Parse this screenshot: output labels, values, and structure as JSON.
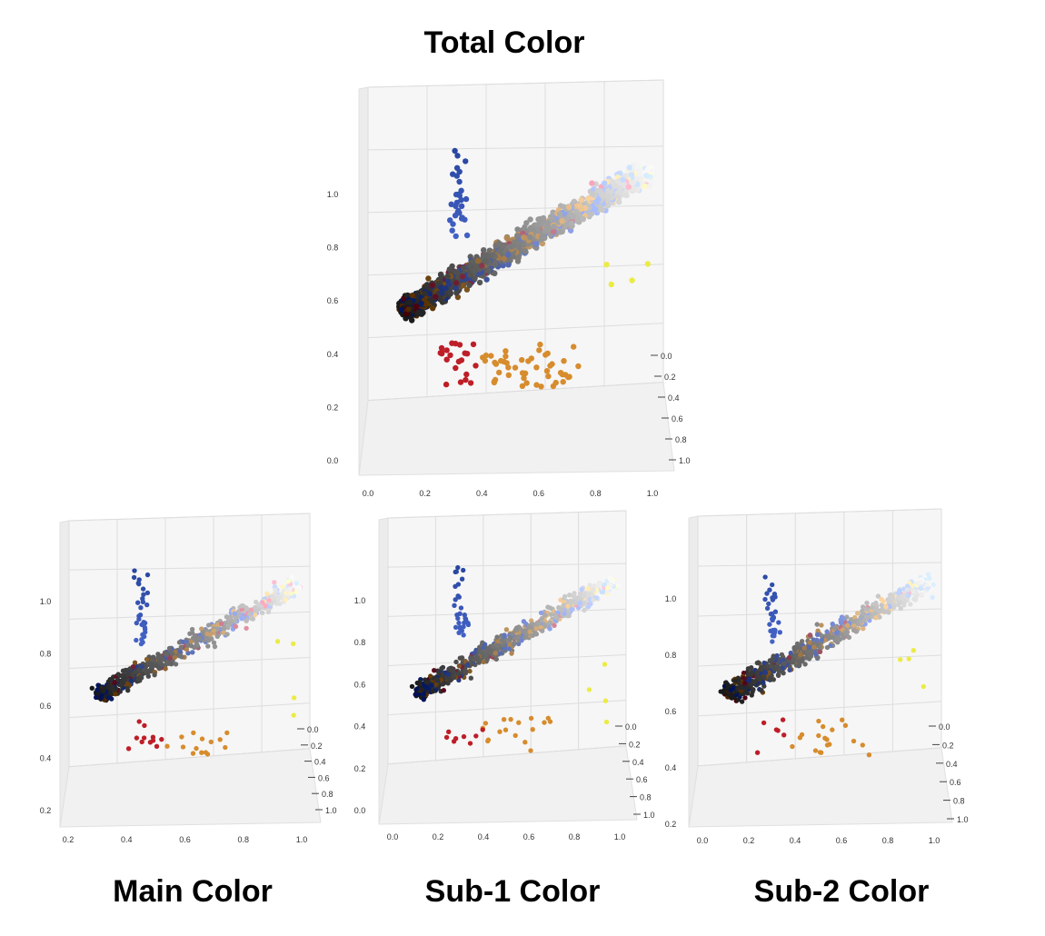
{
  "titles": {
    "total": "Total Color",
    "main": "Main Color",
    "sub1": "Sub-1 Color",
    "sub2": "Sub-2 Color"
  },
  "chart_data": [
    {
      "type": "scatter",
      "view": "3d",
      "title": "Total Color",
      "x_ticks": [
        "0.0",
        "0.2",
        "0.4",
        "0.6",
        "0.8",
        "1.0"
      ],
      "y_ticks": [
        "0.0",
        "0.2",
        "0.4",
        "0.6",
        "0.8",
        "1.0"
      ],
      "z_ticks": [
        "0.0",
        "0.2",
        "0.4",
        "0.6",
        "0.8",
        "1.0"
      ],
      "xlim": [
        0,
        1
      ],
      "ylim": [
        0,
        1
      ],
      "zlim": [
        0,
        1
      ],
      "point_count_estimate": 1800,
      "grid": true
    },
    {
      "type": "scatter",
      "view": "3d",
      "title": "Main Color",
      "x_ticks": [
        "0.2",
        "0.4",
        "0.6",
        "0.8",
        "1.0"
      ],
      "y_ticks": [
        "0.0",
        "0.2",
        "0.4",
        "0.6",
        "0.8",
        "1.0"
      ],
      "z_ticks": [
        "0.2",
        "0.4",
        "0.6",
        "0.8",
        "1.0"
      ],
      "xlim": [
        0,
        1
      ],
      "ylim": [
        0,
        1
      ],
      "zlim": [
        0,
        1
      ],
      "point_count_estimate": 600,
      "grid": true
    },
    {
      "type": "scatter",
      "view": "3d",
      "title": "Sub-1 Color",
      "x_ticks": [
        "0.0",
        "0.2",
        "0.4",
        "0.6",
        "0.8",
        "1.0"
      ],
      "y_ticks": [
        "0.0",
        "0.2",
        "0.4",
        "0.6",
        "0.8",
        "1.0"
      ],
      "z_ticks": [
        "0.0",
        "0.2",
        "0.4",
        "0.6",
        "0.8",
        "1.0"
      ],
      "xlim": [
        0,
        1
      ],
      "ylim": [
        0,
        1
      ],
      "zlim": [
        0,
        1
      ],
      "point_count_estimate": 600,
      "grid": true
    },
    {
      "type": "scatter",
      "view": "3d",
      "title": "Sub-2 Color",
      "x_ticks": [
        "0.0",
        "0.2",
        "0.4",
        "0.6",
        "0.8",
        "1.0"
      ],
      "y_ticks": [
        "0.0",
        "0.2",
        "0.4",
        "0.6",
        "0.8",
        "1.0"
      ],
      "z_ticks": [
        "0.2",
        "0.4",
        "0.6",
        "0.8",
        "1.0"
      ],
      "xlim": [
        0,
        1
      ],
      "ylim": [
        0,
        1
      ],
      "zlim": [
        0,
        1
      ],
      "point_count_estimate": 800,
      "grid": true
    }
  ]
}
